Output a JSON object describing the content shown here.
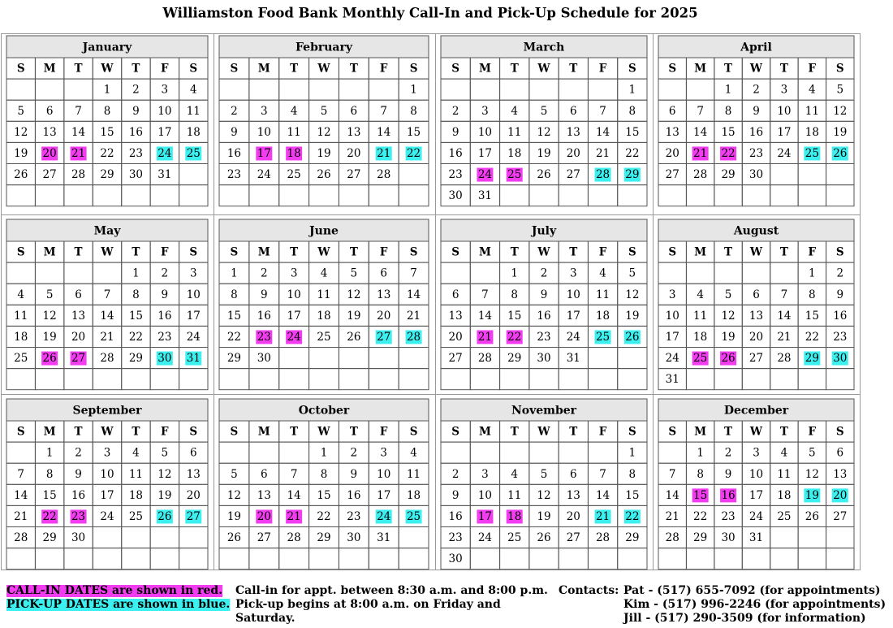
{
  "header": {
    "title": "Williamston Food Bank Monthly Call-In and Pick-Up Schedule for 2025"
  },
  "weekdays": [
    "S",
    "M",
    "T",
    "W",
    "T",
    "F",
    "S"
  ],
  "call_in_color": "#f23cf0",
  "pick_up_color": "#3cf0f0",
  "months": [
    {
      "name": "January",
      "weeks": [
        [
          null,
          null,
          null,
          1,
          2,
          3,
          4
        ],
        [
          5,
          6,
          7,
          8,
          9,
          10,
          11
        ],
        [
          12,
          13,
          14,
          15,
          16,
          17,
          18
        ],
        [
          19,
          20,
          21,
          22,
          23,
          24,
          25
        ],
        [
          26,
          27,
          28,
          29,
          30,
          31
        ]
      ],
      "call_in": [
        20,
        21
      ],
      "pick_up": [
        24,
        25
      ]
    },
    {
      "name": "February",
      "weeks": [
        [
          null,
          null,
          null,
          null,
          null,
          null,
          1
        ],
        [
          2,
          3,
          4,
          5,
          6,
          7,
          8
        ],
        [
          9,
          10,
          11,
          12,
          13,
          14,
          15
        ],
        [
          16,
          17,
          18,
          19,
          20,
          21,
          22
        ],
        [
          23,
          24,
          25,
          26,
          27,
          28
        ]
      ],
      "call_in": [
        17,
        18
      ],
      "pick_up": [
        21,
        22
      ]
    },
    {
      "name": "March",
      "weeks": [
        [
          null,
          null,
          null,
          null,
          null,
          null,
          1
        ],
        [
          2,
          3,
          4,
          5,
          6,
          7,
          8
        ],
        [
          9,
          10,
          11,
          12,
          13,
          14,
          15
        ],
        [
          16,
          17,
          18,
          19,
          20,
          21,
          22
        ],
        [
          23,
          24,
          25,
          26,
          27,
          28,
          29
        ],
        [
          30,
          31
        ]
      ],
      "call_in": [
        24,
        25
      ],
      "pick_up": [
        28,
        29
      ]
    },
    {
      "name": "April",
      "weeks": [
        [
          null,
          null,
          1,
          2,
          3,
          4,
          5
        ],
        [
          6,
          7,
          8,
          9,
          10,
          11,
          12
        ],
        [
          13,
          14,
          15,
          16,
          17,
          18,
          19
        ],
        [
          20,
          21,
          22,
          23,
          24,
          25,
          26
        ],
        [
          27,
          28,
          29,
          30
        ]
      ],
      "call_in": [
        21,
        22
      ],
      "pick_up": [
        25,
        26
      ]
    },
    {
      "name": "May",
      "weeks": [
        [
          null,
          null,
          null,
          null,
          1,
          2,
          3
        ],
        [
          4,
          5,
          6,
          7,
          8,
          9,
          10
        ],
        [
          11,
          12,
          13,
          14,
          15,
          16,
          17
        ],
        [
          18,
          19,
          20,
          21,
          22,
          23,
          24
        ],
        [
          25,
          26,
          27,
          28,
          29,
          30,
          31
        ]
      ],
      "call_in": [
        26,
        27
      ],
      "pick_up": [
        30,
        31
      ]
    },
    {
      "name": "June",
      "weeks": [
        [
          1,
          2,
          3,
          4,
          5,
          6,
          7
        ],
        [
          8,
          9,
          10,
          11,
          12,
          13,
          14
        ],
        [
          15,
          16,
          17,
          18,
          19,
          20,
          21
        ],
        [
          22,
          23,
          24,
          25,
          26,
          27,
          28
        ],
        [
          29,
          30
        ]
      ],
      "call_in": [
        23,
        24
      ],
      "pick_up": [
        27,
        28
      ]
    },
    {
      "name": "July",
      "weeks": [
        [
          null,
          null,
          1,
          2,
          3,
          4,
          5
        ],
        [
          6,
          7,
          8,
          9,
          10,
          11,
          12
        ],
        [
          13,
          14,
          15,
          16,
          17,
          18,
          19
        ],
        [
          20,
          21,
          22,
          23,
          24,
          25,
          26
        ],
        [
          27,
          28,
          29,
          30,
          31
        ]
      ],
      "call_in": [
        21,
        22
      ],
      "pick_up": [
        25,
        26
      ]
    },
    {
      "name": "August",
      "weeks": [
        [
          null,
          null,
          null,
          null,
          null,
          1,
          2
        ],
        [
          3,
          4,
          5,
          6,
          7,
          8,
          9
        ],
        [
          10,
          11,
          12,
          13,
          14,
          15,
          16
        ],
        [
          17,
          18,
          19,
          20,
          21,
          22,
          23
        ],
        [
          24,
          25,
          26,
          27,
          28,
          29,
          30
        ],
        [
          31
        ]
      ],
      "call_in": [
        25,
        26
      ],
      "pick_up": [
        29,
        30
      ]
    },
    {
      "name": "September",
      "weeks": [
        [
          null,
          1,
          2,
          3,
          4,
          5,
          6
        ],
        [
          7,
          8,
          9,
          10,
          11,
          12,
          13
        ],
        [
          14,
          15,
          16,
          17,
          18,
          19,
          20
        ],
        [
          21,
          22,
          23,
          24,
          25,
          26,
          27
        ],
        [
          28,
          29,
          30
        ]
      ],
      "call_in": [
        22,
        23
      ],
      "pick_up": [
        26,
        27
      ]
    },
    {
      "name": "October",
      "weeks": [
        [
          null,
          null,
          null,
          1,
          2,
          3,
          4
        ],
        [
          5,
          6,
          7,
          8,
          9,
          10,
          11
        ],
        [
          12,
          13,
          14,
          15,
          16,
          17,
          18
        ],
        [
          19,
          20,
          21,
          22,
          23,
          24,
          25
        ],
        [
          26,
          27,
          28,
          29,
          30,
          31
        ]
      ],
      "call_in": [
        20,
        21
      ],
      "pick_up": [
        24,
        25
      ]
    },
    {
      "name": "November",
      "weeks": [
        [
          null,
          null,
          null,
          null,
          null,
          null,
          1
        ],
        [
          2,
          3,
          4,
          5,
          6,
          7,
          8
        ],
        [
          9,
          10,
          11,
          12,
          13,
          14,
          15
        ],
        [
          16,
          17,
          18,
          19,
          20,
          21,
          22
        ],
        [
          23,
          24,
          25,
          26,
          27,
          28,
          29
        ],
        [
          30
        ]
      ],
      "call_in": [
        17,
        18
      ],
      "pick_up": [
        21,
        22
      ]
    },
    {
      "name": "December",
      "weeks": [
        [
          null,
          1,
          2,
          3,
          4,
          5,
          6
        ],
        [
          7,
          8,
          9,
          10,
          11,
          12,
          13
        ],
        [
          14,
          15,
          16,
          17,
          18,
          19,
          20
        ],
        [
          21,
          22,
          23,
          24,
          25,
          26,
          27
        ],
        [
          28,
          29,
          30,
          31
        ]
      ],
      "call_in": [
        15,
        16
      ],
      "pick_up": [
        19,
        20
      ]
    }
  ],
  "footer": {
    "call_in_legend": "CALL-IN DATES are shown in red.",
    "pick_up_legend": "PICK-UP DATES are shown in blue.",
    "notes": [
      "Call-in for appt. between 8:30 a.m. and 8:00 p.m.",
      "Pick-up begins at 8:00 a.m. on Friday and",
      "Saturday."
    ],
    "contacts_label": "Contacts:",
    "contacts": [
      "Pat - (517) 655-7092 (for appointments)",
      "Kim - (517) 996-2246 (for appointments)",
      "Jill - (517) 290-3509 (for information)"
    ]
  }
}
